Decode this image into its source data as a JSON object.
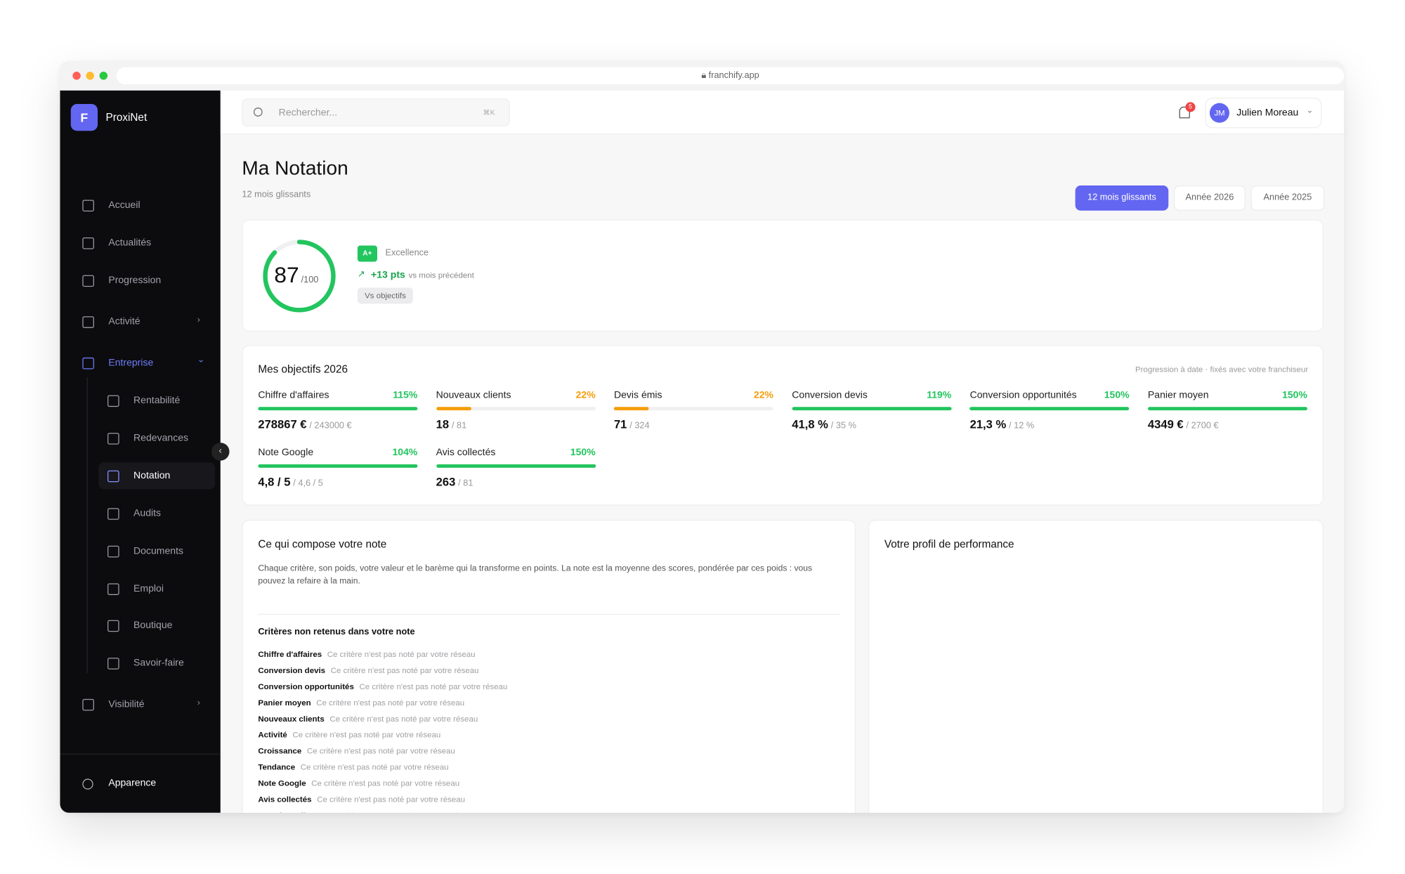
{
  "browser": {
    "url": "franchify.app"
  },
  "sidebar": {
    "brand_initial": "F",
    "brand": "ProxiNet",
    "items": [
      {
        "label": "Accueil"
      },
      {
        "label": "Actualités"
      },
      {
        "label": "Progression"
      },
      {
        "label": "Activité"
      },
      {
        "label": "Entreprise"
      },
      {
        "label": "Rentabilité"
      },
      {
        "label": "Redevances"
      },
      {
        "label": "Notation"
      },
      {
        "label": "Audits"
      },
      {
        "label": "Documents"
      },
      {
        "label": "Emploi"
      },
      {
        "label": "Boutique"
      },
      {
        "label": "Savoir-faire"
      },
      {
        "label": "Visibilité"
      }
    ],
    "footer": "Apparence"
  },
  "topbar": {
    "search_placeholder": "Rechercher...",
    "shortcut": "⌘K",
    "notifications": "5",
    "avatar": "JM",
    "user": "Julien Moreau"
  },
  "header": {
    "title": "Ma Notation",
    "subtitle": "12 mois glissants",
    "tabs": [
      "12 mois glissants",
      "Année 2026",
      "Année 2025"
    ]
  },
  "score_card": {
    "score": 87,
    "score_scale": 100,
    "score_scale_label": "/100",
    "grade": "A+",
    "grade_label": "Excellence",
    "trend": "+13 pts",
    "trend_note": "vs mois précédent",
    "compare": "Vs objectifs"
  },
  "objectives": {
    "title": "Mes objectifs 2026",
    "note": "Progression à date · fixés avec votre franchiseur",
    "items": [
      {
        "name": "Chiffre d'affaires",
        "progress": 115,
        "progress_label": "115%",
        "color": "#22c55e",
        "value": "278867 €",
        "target": "/ 243000 €"
      },
      {
        "name": "Nouveaux clients",
        "progress": 22,
        "progress_label": "22%",
        "color": "#f59e0b",
        "value": "18",
        "target": "/ 81"
      },
      {
        "name": "Devis émis",
        "progress": 22,
        "progress_label": "22%",
        "color": "#f59e0b",
        "value": "71",
        "target": "/ 324"
      },
      {
        "name": "Conversion devis",
        "progress": 119,
        "progress_label": "119%",
        "color": "#22c55e",
        "value": "41,8 %",
        "target": "/ 35 %"
      },
      {
        "name": "Conversion opportunités",
        "progress": 150,
        "progress_label": "150%",
        "color": "#22c55e",
        "value": "21,3 %",
        "target": "/ 12 %"
      },
      {
        "name": "Panier moyen",
        "progress": 150,
        "progress_label": "150%",
        "color": "#22c55e",
        "value": "4349 €",
        "target": "/ 2700 €"
      },
      {
        "name": "Note Google",
        "progress": 104,
        "progress_label": "104%",
        "color": "#22c55e",
        "value": "4,8 / 5",
        "target": "/ 4,6 / 5"
      },
      {
        "name": "Avis collectés",
        "progress": 150,
        "progress_label": "150%",
        "color": "#22c55e",
        "value": "263",
        "target": "/ 81"
      }
    ]
  },
  "composition": {
    "title": "Ce qui compose votre note",
    "description": "Chaque critère, son poids, votre valeur et le barème qui la transforme en points. La note est la moyenne des scores, pondérée par ces poids : vous pouvez la refaire à la main.",
    "excluded_title": "Critères non retenus dans votre note",
    "excluded": [
      {
        "name": "Chiffre d'affaires",
        "note": "Ce critère n'est pas noté par votre réseau"
      },
      {
        "name": "Conversion devis",
        "note": "Ce critère n'est pas noté par votre réseau"
      },
      {
        "name": "Conversion opportunités",
        "note": "Ce critère n'est pas noté par votre réseau"
      },
      {
        "name": "Panier moyen",
        "note": "Ce critère n'est pas noté par votre réseau"
      },
      {
        "name": "Nouveaux clients",
        "note": "Ce critère n'est pas noté par votre réseau"
      },
      {
        "name": "Activité",
        "note": "Ce critère n'est pas noté par votre réseau"
      },
      {
        "name": "Croissance",
        "note": "Ce critère n'est pas noté par votre réseau"
      },
      {
        "name": "Tendance",
        "note": "Ce critère n'est pas noté par votre réseau"
      },
      {
        "name": "Note Google",
        "note": "Ce critère n'est pas noté par votre réseau"
      },
      {
        "name": "Avis collectés",
        "note": "Ce critère n'est pas noté par votre réseau"
      },
      {
        "name": "Enquêtes clients",
        "note": "Ce critère n'est pas noté par votre réseau"
      }
    ]
  },
  "profile": {
    "title": "Votre profil de performance"
  }
}
